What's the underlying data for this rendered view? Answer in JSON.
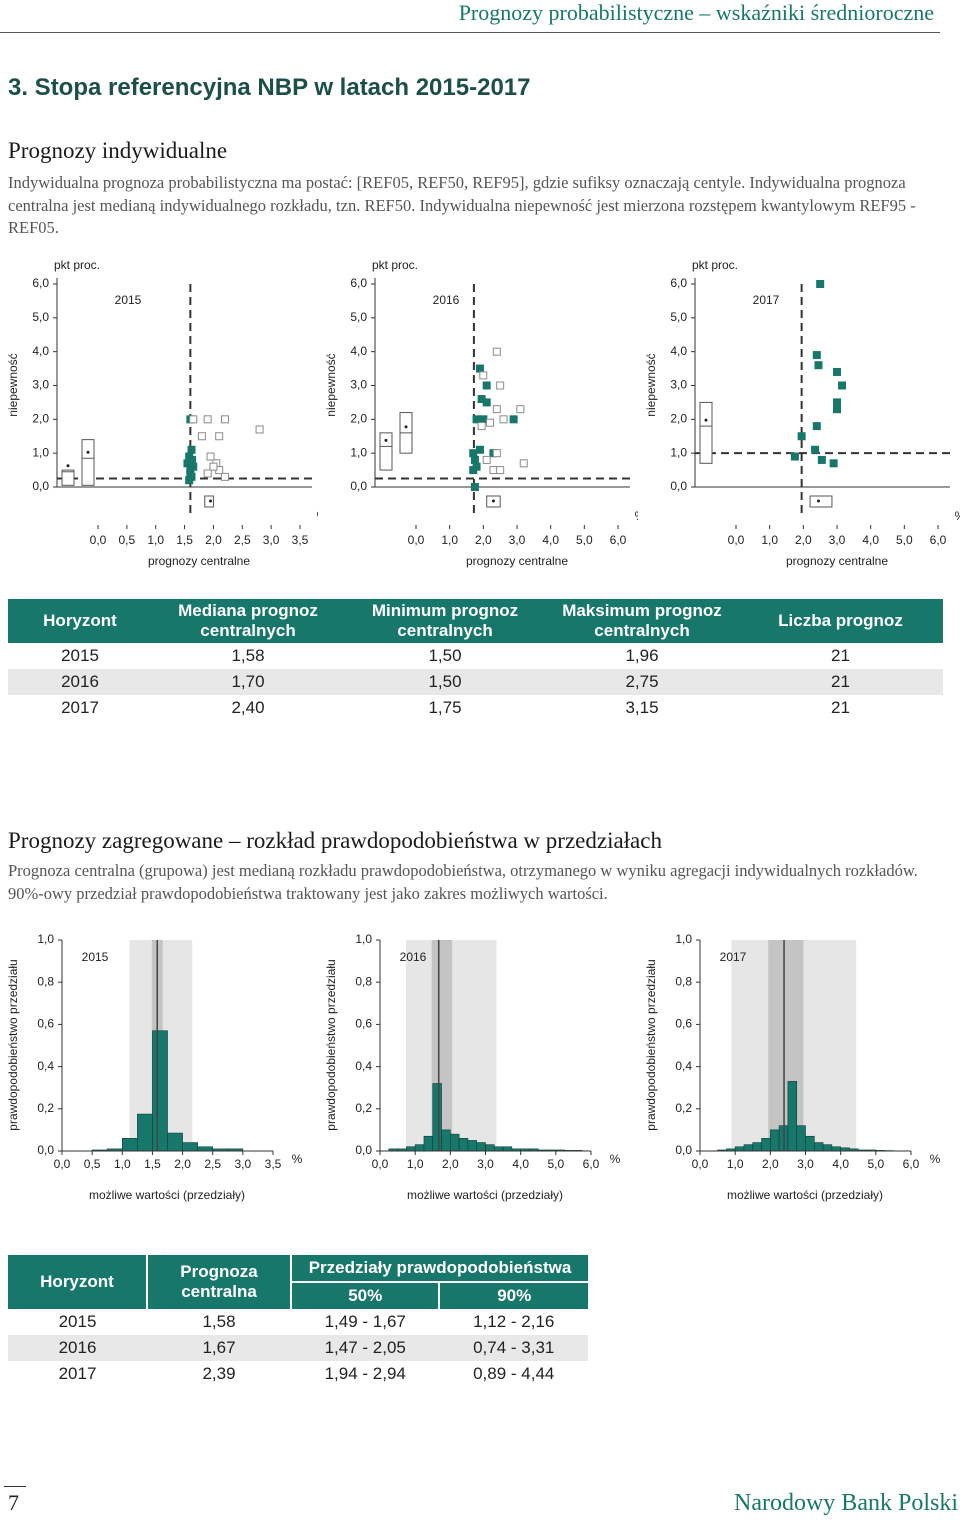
{
  "header": "Prognozy probabilistyczne – wskaźniki średnioroczne",
  "section_title": "3. Stopa referencyjna NBP w latach 2015-2017",
  "individual": {
    "title": "Prognozy indywidualne",
    "text": "Indywidualna prognoza probabilistyczna ma postać: [REF05, REF50, REF95], gdzie sufiksy oznaczają centyle. Indywidualna prognoza centralna jest medianą indywidualnego rozkładu, tzn. REF50. Indywidualna niepewność jest mierzona rozstępem kwantylowym REF95 - REF05."
  },
  "table1": {
    "headers": [
      "Horyzont",
      "Mediana prognoz centralnych",
      "Minimum prognoz centralnych",
      "Maksimum prognoz centralnych",
      "Liczba prognoz"
    ],
    "rows": [
      [
        "2015",
        "1,58",
        "1,50",
        "1,96",
        "21"
      ],
      [
        "2016",
        "1,70",
        "1,50",
        "2,75",
        "21"
      ],
      [
        "2017",
        "2,40",
        "1,75",
        "3,15",
        "21"
      ]
    ]
  },
  "aggregated": {
    "title": "Prognozy zagregowane – rozkład prawdopodobieństwa w przedziałach",
    "text": "Prognoza centralna (grupowa) jest medianą rozkładu prawdopodobieństwa, otrzymanego w wyniku agregacji indywidualnych rozkładów. 90%-owy przedział prawdopodobieństwa traktowany jest jako zakres możliwych wartości."
  },
  "table2": {
    "horizon": "Horyzont",
    "central": "Prognoza centralna",
    "intervals": "Przedziały prawdopodobieństwa",
    "p50": "50%",
    "p90": "90%",
    "rows": [
      [
        "2015",
        "1,58",
        "1,49 - 1,67",
        "1,12 - 2,16"
      ],
      [
        "2016",
        "1,67",
        "1,47 - 2,05",
        "0,74 - 3,31"
      ],
      [
        "2017",
        "2,39",
        "1,94 - 2,94",
        "0,89 - 4,44"
      ]
    ]
  },
  "footer": {
    "page": "7",
    "publisher": "Narodowy Bank Polski"
  },
  "chart_data": [
    {
      "type": "scatter",
      "title": "2015",
      "y_unit": "pkt proc.",
      "x_unit": "%",
      "xlabel": "prognozy centralne",
      "ylabel": "niepewność",
      "xlim": [
        0,
        3.5
      ],
      "ylim": [
        0,
        6
      ],
      "xticks": [
        {
          "value": 0,
          "label": "0,0"
        },
        {
          "value": 0.5,
          "label": "0,5"
        },
        {
          "value": 1,
          "label": "1,0"
        },
        {
          "value": 1.5,
          "label": "1,5"
        },
        {
          "value": 2,
          "label": "2,0"
        },
        {
          "value": 2.5,
          "label": "2,5"
        },
        {
          "value": 3,
          "label": "3,0"
        },
        {
          "value": 3.5,
          "label": "3,5"
        }
      ],
      "yticks": [
        {
          "value": 0,
          "label": "0,0"
        },
        {
          "value": 1,
          "label": "1,0"
        },
        {
          "value": 2,
          "label": "2,0"
        },
        {
          "value": 3,
          "label": "3,0"
        },
        {
          "value": 4,
          "label": "4,0"
        },
        {
          "value": 5,
          "label": "5,0"
        },
        {
          "value": 6,
          "label": "6,0"
        }
      ],
      "series": [
        {
          "color": "#17776a",
          "marker": "filled",
          "x": [
            1.6,
            1.62,
            1.58,
            1.55,
            1.6,
            1.62,
            1.58,
            1.65,
            1.6,
            1.63
          ],
          "values": [
            2.0,
            1.1,
            0.9,
            0.7,
            0.5,
            0.3,
            0.2,
            0.6,
            0.4,
            0.8
          ]
        },
        {
          "color": "#8a8a8a",
          "marker": "hollow",
          "x": [
            1.65,
            1.9,
            2.2,
            1.8,
            2.1,
            2.8,
            1.95,
            2.05,
            2.1,
            1.9,
            2.2,
            2.0
          ],
          "values": [
            2.0,
            2.0,
            2.0,
            1.5,
            1.5,
            1.7,
            0.9,
            0.7,
            0.5,
            0.4,
            0.3,
            0.6
          ]
        }
      ],
      "median_x": 1.6,
      "median_y": 0.25,
      "y_boxes": [
        [
          0.05,
          0.45,
          0.5
        ],
        [
          0.05,
          0.85,
          1.4
        ]
      ],
      "x_box": [
        1.85,
        1.95,
        2.0
      ]
    },
    {
      "type": "scatter",
      "title": "2016",
      "y_unit": "pkt proc.",
      "x_unit": "%",
      "xlabel": "prognozy centralne",
      "ylabel": "niepewność",
      "xlim": [
        0,
        6
      ],
      "ylim": [
        0,
        6
      ],
      "xticks": [
        {
          "value": 0,
          "label": "0,0"
        },
        {
          "value": 1,
          "label": "1,0"
        },
        {
          "value": 2,
          "label": "2,0"
        },
        {
          "value": 3,
          "label": "3,0"
        },
        {
          "value": 4,
          "label": "4,0"
        },
        {
          "value": 5,
          "label": "5,0"
        },
        {
          "value": 6,
          "label": "6,0"
        }
      ],
      "yticks": [
        {
          "value": 0,
          "label": "0,0"
        },
        {
          "value": 1,
          "label": "1,0"
        },
        {
          "value": 2,
          "label": "2,0"
        },
        {
          "value": 3,
          "label": "3,0"
        },
        {
          "value": 4,
          "label": "4,0"
        },
        {
          "value": 5,
          "label": "5,0"
        },
        {
          "value": 6,
          "label": "6,0"
        }
      ],
      "series": [
        {
          "color": "#17776a",
          "marker": "filled",
          "x": [
            1.9,
            2.1,
            1.95,
            2.1,
            2.0,
            1.8,
            2.9,
            1.9,
            1.7,
            1.75,
            1.8,
            1.7,
            1.75,
            2.3
          ],
          "values": [
            3.5,
            3.0,
            2.6,
            2.5,
            2.0,
            2.0,
            2.0,
            1.1,
            1.0,
            0.8,
            0.6,
            0.5,
            0.0,
            1.0
          ]
        },
        {
          "color": "#8a8a8a",
          "marker": "hollow",
          "x": [
            2.4,
            2.0,
            2.5,
            2.4,
            3.1,
            2.6,
            2.2,
            1.95,
            2.4,
            2.1,
            2.3,
            3.2,
            2.5
          ],
          "values": [
            4.0,
            3.3,
            3.0,
            2.3,
            2.3,
            2.0,
            1.9,
            1.8,
            1.0,
            0.8,
            0.5,
            0.7,
            0.5
          ]
        }
      ],
      "median_x": 1.72,
      "median_y": 0.25,
      "y_boxes": [
        [
          0.5,
          1.2,
          1.6
        ],
        [
          1.0,
          1.6,
          2.2
        ]
      ],
      "x_box": [
        2.1,
        2.3,
        2.5
      ]
    },
    {
      "type": "scatter",
      "title": "2017",
      "y_unit": "pkt proc.",
      "x_unit": "%",
      "xlabel": "prognozy centralne",
      "ylabel": "niepewność",
      "xlim": [
        0,
        6
      ],
      "ylim": [
        0,
        6
      ],
      "xticks": [
        {
          "value": 0,
          "label": "0,0"
        },
        {
          "value": 1,
          "label": "1,0"
        },
        {
          "value": 2,
          "label": "2,0"
        },
        {
          "value": 3,
          "label": "3,0"
        },
        {
          "value": 4,
          "label": "4,0"
        },
        {
          "value": 5,
          "label": "5,0"
        },
        {
          "value": 6,
          "label": "6,0"
        }
      ],
      "yticks": [
        {
          "value": 0,
          "label": "0,0"
        },
        {
          "value": 1,
          "label": "1,0"
        },
        {
          "value": 2,
          "label": "2,0"
        },
        {
          "value": 3,
          "label": "3,0"
        },
        {
          "value": 4,
          "label": "4,0"
        },
        {
          "value": 5,
          "label": "5,0"
        },
        {
          "value": 6,
          "label": "6,0"
        }
      ],
      "series": [
        {
          "color": "#17776a",
          "marker": "filled",
          "x": [
            2.5,
            2.4,
            2.45,
            3.0,
            3.15,
            3.0,
            3.0,
            2.4,
            1.95,
            2.35,
            1.75,
            2.55,
            2.9
          ],
          "values": [
            6.0,
            3.9,
            3.6,
            3.4,
            3.0,
            2.5,
            2.3,
            1.8,
            1.5,
            1.1,
            0.9,
            0.8,
            0.7
          ]
        }
      ],
      "median_x": 1.95,
      "median_y": 1.0,
      "y_boxes": [
        [
          0.7,
          1.8,
          2.5
        ]
      ],
      "x_box": [
        2.2,
        2.45,
        2.85
      ]
    },
    {
      "type": "histogram",
      "title": "2015",
      "x_unit": "%",
      "xlabel": "możliwe wartości (przedziały)",
      "ylabel": "prawdopodobieństwo przedziału",
      "color": "#17776a",
      "xlim": [
        0,
        3.5
      ],
      "ylim": [
        0,
        1
      ],
      "xticks": [
        {
          "value": 0,
          "label": "0,0"
        },
        {
          "value": 0.5,
          "label": "0,5"
        },
        {
          "value": 1,
          "label": "1,0"
        },
        {
          "value": 1.5,
          "label": "1,5"
        },
        {
          "value": 2,
          "label": "2,0"
        },
        {
          "value": 2.5,
          "label": "2,5"
        },
        {
          "value": 3,
          "label": "3,0"
        },
        {
          "value": 3.5,
          "label": "3,5"
        }
      ],
      "yticks": [
        {
          "value": 0,
          "label": "0,0"
        },
        {
          "value": 0.2,
          "label": "0,2"
        },
        {
          "value": 0.4,
          "label": "0,4"
        },
        {
          "value": 0.6,
          "label": "0,6"
        },
        {
          "value": 0.8,
          "label": "0,8"
        },
        {
          "value": 1,
          "label": "1,0"
        }
      ],
      "bins": [
        0.5,
        0.75,
        1.0,
        1.25,
        1.5,
        1.75,
        2.0,
        2.25,
        2.5,
        2.75,
        3.0
      ],
      "values": [
        0.005,
        0.01,
        0.06,
        0.175,
        0.57,
        0.085,
        0.04,
        0.02,
        0.01,
        0.01
      ],
      "median": 1.58,
      "intervals": [
        [
          1.12,
          2.16
        ],
        [
          1.49,
          1.67
        ]
      ],
      "interval_colors": [
        "#e6e6e6",
        "#c4c4c4"
      ]
    },
    {
      "type": "histogram",
      "title": "2016",
      "x_unit": "%",
      "xlabel": "możliwe wartości (przedziały)",
      "ylabel": "prawdopodobieństwo przedziału",
      "color": "#17776a",
      "xlim": [
        0,
        6
      ],
      "ylim": [
        0,
        1
      ],
      "xticks": [
        {
          "value": 0,
          "label": "0,0"
        },
        {
          "value": 1,
          "label": "1,0"
        },
        {
          "value": 2,
          "label": "2,0"
        },
        {
          "value": 3,
          "label": "3,0"
        },
        {
          "value": 4,
          "label": "4,0"
        },
        {
          "value": 5,
          "label": "5,0"
        },
        {
          "value": 6,
          "label": "6,0"
        }
      ],
      "yticks": [
        {
          "value": 0,
          "label": "0,0"
        },
        {
          "value": 0.2,
          "label": "0,2"
        },
        {
          "value": 0.4,
          "label": "0,4"
        },
        {
          "value": 0.6,
          "label": "0,6"
        },
        {
          "value": 0.8,
          "label": "0,8"
        },
        {
          "value": 1,
          "label": "1,0"
        }
      ],
      "bins": [
        0.25,
        0.5,
        0.75,
        1.0,
        1.25,
        1.5,
        1.75,
        2.0,
        2.25,
        2.5,
        2.75,
        3.0,
        3.25,
        3.5,
        3.75,
        4.0,
        4.25,
        4.5,
        4.75,
        5.0,
        5.25,
        5.5,
        5.75
      ],
      "values": [
        0.01,
        0.01,
        0.02,
        0.03,
        0.07,
        0.32,
        0.1,
        0.08,
        0.06,
        0.05,
        0.04,
        0.03,
        0.02,
        0.02,
        0.01,
        0.01,
        0.01,
        0.005,
        0.005,
        0.005,
        0.003,
        0.003
      ],
      "median": 1.67,
      "intervals": [
        [
          0.74,
          3.31
        ],
        [
          1.47,
          2.05
        ]
      ],
      "interval_colors": [
        "#e6e6e6",
        "#c4c4c4"
      ]
    },
    {
      "type": "histogram",
      "title": "2017",
      "x_unit": "%",
      "xlabel": "możliwe wartości (przedziały)",
      "ylabel": "prawdopodobieństwo przedziału",
      "color": "#17776a",
      "xlim": [
        0,
        6
      ],
      "ylim": [
        0,
        1
      ],
      "xticks": [
        {
          "value": 0,
          "label": "0,0"
        },
        {
          "value": 1,
          "label": "1,0"
        },
        {
          "value": 2,
          "label": "2,0"
        },
        {
          "value": 3,
          "label": "3,0"
        },
        {
          "value": 4,
          "label": "4,0"
        },
        {
          "value": 5,
          "label": "5,0"
        },
        {
          "value": 6,
          "label": "6,0"
        }
      ],
      "yticks": [
        {
          "value": 0,
          "label": "0,0"
        },
        {
          "value": 0.2,
          "label": "0,2"
        },
        {
          "value": 0.4,
          "label": "0,4"
        },
        {
          "value": 0.6,
          "label": "0,6"
        },
        {
          "value": 0.8,
          "label": "0,8"
        },
        {
          "value": 1,
          "label": "1,0"
        }
      ],
      "bins": [
        0.5,
        0.75,
        1.0,
        1.25,
        1.5,
        1.75,
        2.0,
        2.25,
        2.5,
        2.75,
        3.0,
        3.25,
        3.5,
        3.75,
        4.0,
        4.25,
        4.5,
        4.75,
        5.0,
        5.25,
        5.5
      ],
      "values": [
        0.005,
        0.01,
        0.02,
        0.03,
        0.04,
        0.06,
        0.1,
        0.12,
        0.33,
        0.12,
        0.07,
        0.04,
        0.03,
        0.02,
        0.015,
        0.01,
        0.005,
        0.005,
        0.003,
        0.002
      ],
      "median": 2.39,
      "intervals": [
        [
          0.89,
          4.44
        ],
        [
          1.94,
          2.94
        ]
      ],
      "interval_colors": [
        "#e6e6e6",
        "#c4c4c4"
      ]
    }
  ]
}
